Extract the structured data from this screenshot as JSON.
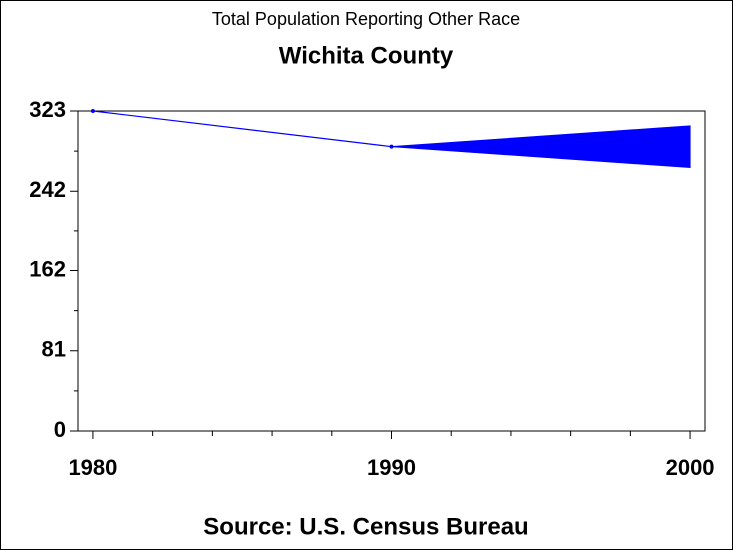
{
  "chart_data": {
    "type": "line",
    "title": "Total Population Reporting Other Race",
    "subtitle": "Wichita County",
    "source": "Source: U.S. Census Bureau",
    "x": [
      1980,
      1990,
      2000
    ],
    "values": [
      323,
      287,
      null
    ],
    "band": {
      "upper": [
        null,
        287,
        308
      ],
      "lower": [
        null,
        287,
        266
      ]
    },
    "color": "#0000ff",
    "xlim": [
      1979.5,
      2000.5
    ],
    "xticks": [
      1980,
      1990,
      2000
    ],
    "ylim": [
      0,
      323
    ],
    "yticks": [
      0,
      81,
      162,
      242,
      323
    ]
  }
}
